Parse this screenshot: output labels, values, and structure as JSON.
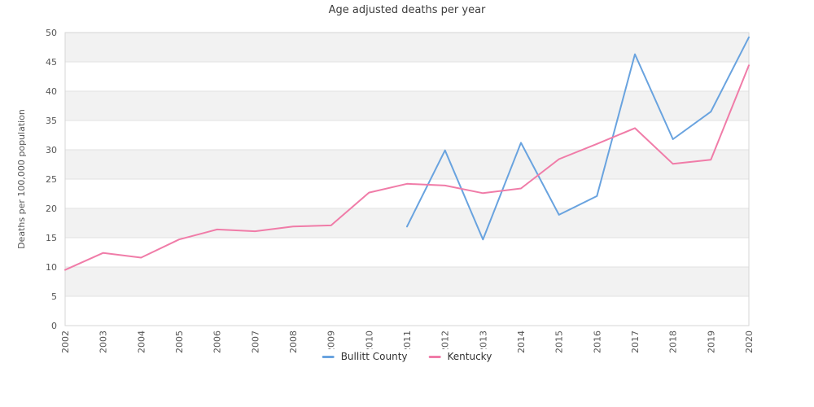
{
  "chart_data": {
    "type": "line",
    "title": "Age adjusted deaths per year",
    "ylabel": "Deaths per 100,000 population",
    "x": [
      2002,
      2003,
      2004,
      2005,
      2006,
      2007,
      2008,
      2009,
      2010,
      2011,
      2012,
      2013,
      2014,
      2015,
      2016,
      2017,
      2018,
      2019,
      2020
    ],
    "series": [
      {
        "name": "Bullitt County",
        "color": "#69A3DF",
        "values": [
          null,
          null,
          null,
          null,
          null,
          null,
          null,
          null,
          null,
          16.9,
          29.9,
          14.7,
          31.2,
          18.9,
          22.1,
          46.3,
          31.8,
          36.5,
          49.2
        ]
      },
      {
        "name": "Kentucky",
        "color": "#F07CA8",
        "values": [
          9.5,
          12.4,
          11.6,
          14.7,
          16.4,
          16.1,
          16.9,
          17.1,
          22.7,
          24.2,
          23.9,
          22.6,
          23.4,
          28.4,
          31.0,
          33.7,
          27.6,
          28.3,
          44.4
        ]
      }
    ],
    "ylim": [
      0,
      50
    ],
    "yticks": [
      0,
      5,
      10,
      15,
      20,
      25,
      30,
      35,
      40,
      45,
      50
    ],
    "legend_position": "bottom-center",
    "grid": "horizontal gridlines with alternating gray bands every 5 units"
  },
  "style": {
    "band_fill": "#f2f2f2",
    "gridline": "#e2e2e2",
    "plot_border": "#d6d6d6",
    "tick_text": "#555555",
    "title_text": "#3c3c3c",
    "legend_text": "#333333"
  }
}
